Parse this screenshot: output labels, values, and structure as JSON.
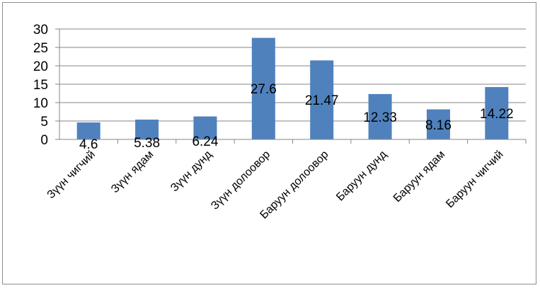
{
  "chart_data": {
    "type": "bar",
    "categories": [
      "Зүүн чигчий",
      "Зүүн ядам",
      "Зүүн дунд",
      "Зүүн долоовор",
      "Баруун долоовор",
      "Баруун дунд",
      "Баруун ядам",
      "Баруун чигчий"
    ],
    "values": [
      4.6,
      5.38,
      6.24,
      27.6,
      21.47,
      12.33,
      8.16,
      14.22
    ],
    "data_labels": [
      "4.6",
      "5.38",
      "6.24",
      "27.6",
      "21.47",
      "12.33",
      "8.16",
      "14.22"
    ],
    "yticks": [
      "0",
      "5",
      "10",
      "15",
      "20",
      "25",
      "30"
    ],
    "ylim": [
      0,
      30
    ],
    "grid": true,
    "legend": "none",
    "bar_color": "#4f81bd"
  }
}
